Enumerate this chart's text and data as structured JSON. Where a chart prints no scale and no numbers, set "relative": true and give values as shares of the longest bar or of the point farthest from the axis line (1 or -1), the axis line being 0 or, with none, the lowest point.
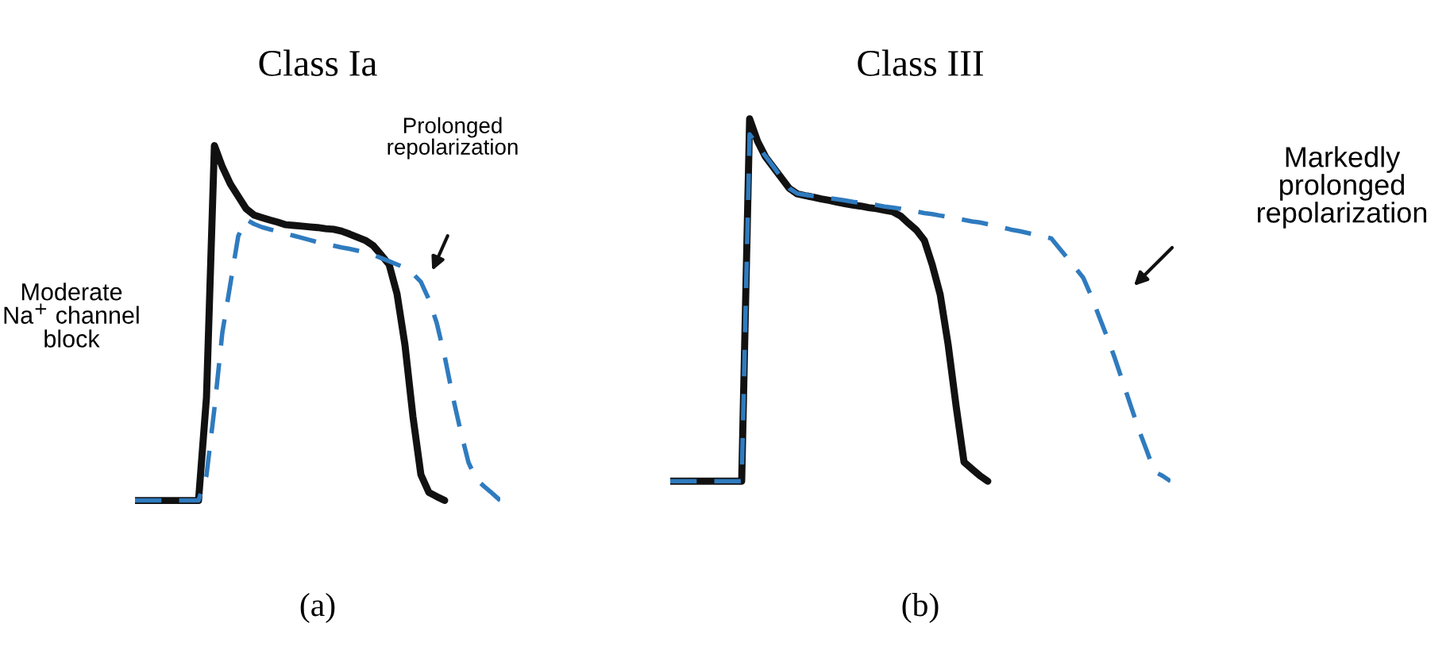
{
  "chart_data": [
    {
      "type": "line",
      "title": "Class Ia",
      "xlabel": "(a)",
      "relative": true,
      "tick_labels": false,
      "marker": "none",
      "annotations": [
        "Moderate\nNa$^{+}$ channel\nblock",
        "Prolonged\nrepolarization"
      ],
      "categories": [
        null,
        null,
        null,
        null,
        null,
        null,
        null,
        null,
        null,
        null,
        null,
        null,
        null,
        null,
        null,
        null,
        null,
        null,
        null,
        null,
        null,
        null,
        null,
        null,
        null,
        null,
        null,
        null,
        null,
        null,
        null,
        null,
        null,
        null,
        null,
        null,
        null,
        null,
        null,
        null,
        null,
        null,
        null,
        null,
        null,
        null,
        null
      ],
      "series": [
        {
          "color": "#111111",
          "line_style": "solid",
          "values": [
            0,
            0,
            0,
            0,
            0,
            0,
            0,
            0,
            0,
            0.29,
            1.0,
            0.94,
            0.892,
            0.857,
            0.822,
            0.804,
            0.797,
            0.79,
            0.784,
            0.777,
            0.775,
            0.773,
            0.771,
            0.769,
            0.766,
            0.764,
            0.759,
            0.751,
            0.742,
            0.733,
            0.718,
            0.692,
            0.665,
            0.582,
            0.438,
            0.237,
            0.073,
            0.023,
            0.011,
            0,
            null,
            null,
            null,
            null,
            null,
            null,
            null
          ]
        },
        {
          "color": "#2f7bbf",
          "line_style": "dashed",
          "values": [
            0,
            0,
            0,
            0,
            0,
            0,
            0,
            0,
            0,
            0.07,
            0.259,
            0.473,
            0.609,
            0.745,
            0.792,
            0.779,
            0.77,
            0.764,
            0.758,
            0.752,
            0.746,
            0.74,
            0.734,
            0.728,
            0.723,
            0.718,
            0.713,
            0.709,
            0.704,
            0.699,
            0.692,
            0.683,
            0.674,
            0.665,
            0.656,
            0.639,
            0.616,
            0.567,
            0.5,
            0.406,
            0.295,
            0.196,
            0.107,
            0.059,
            0.039,
            0.02,
            0
          ]
        }
      ]
    },
    {
      "type": "line",
      "title": "Class III",
      "xlabel": "(b)",
      "relative": true,
      "tick_labels": false,
      "marker": "none",
      "annotations": [
        "Markedly\nprolonged\nrepolarization"
      ],
      "categories": [
        null,
        null,
        null,
        null,
        null,
        null,
        null,
        null,
        null,
        null,
        null,
        null,
        null,
        null,
        null,
        null,
        null,
        null,
        null,
        null,
        null,
        null,
        null,
        null,
        null,
        null,
        null,
        null,
        null,
        null,
        null,
        null,
        null,
        null,
        null,
        null,
        null,
        null,
        null,
        null,
        null,
        null,
        null,
        null,
        null,
        null,
        null,
        null,
        null,
        null,
        null,
        null,
        null,
        null,
        null,
        null,
        null,
        null,
        null,
        null,
        null,
        null,
        null,
        null
      ],
      "series": [
        {
          "color": "#111111",
          "line_style": "solid",
          "values": [
            0,
            0,
            0,
            0,
            0,
            0,
            0,
            0,
            0,
            0,
            1.0,
            0.938,
            0.895,
            0.866,
            0.837,
            0.808,
            0.793,
            0.788,
            0.784,
            0.779,
            0.775,
            0.77,
            0.766,
            0.762,
            0.759,
            0.755,
            0.752,
            0.748,
            0.744,
            0.732,
            0.712,
            0.693,
            0.665,
            0.597,
            0.515,
            0.377,
            0.208,
            0.053,
            0.034,
            0.015,
            0,
            null,
            null,
            null,
            null,
            null,
            null,
            null,
            null,
            null,
            null,
            null,
            null,
            null,
            null,
            null,
            null,
            null,
            null,
            null,
            null,
            null,
            null,
            null
          ]
        },
        {
          "color": "#2f7bbf",
          "line_style": "dashed",
          "values": [
            0,
            0,
            0,
            0,
            0,
            0,
            0,
            0,
            0,
            0,
            0.957,
            0.927,
            0.897,
            0.868,
            0.838,
            0.808,
            0.794,
            0.79,
            0.787,
            0.784,
            0.781,
            0.778,
            0.775,
            0.771,
            0.768,
            0.765,
            0.762,
            0.758,
            0.755,
            0.752,
            0.748,
            0.744,
            0.74,
            0.737,
            0.733,
            0.729,
            0.725,
            0.721,
            0.717,
            0.714,
            0.709,
            0.704,
            0.699,
            0.694,
            0.69,
            0.685,
            0.68,
            0.675,
            0.67,
            0.643,
            0.616,
            0.589,
            0.562,
            0.512,
            0.455,
            0.399,
            0.339,
            0.274,
            0.208,
            0.143,
            0.085,
            0.026,
            0.015,
            0
          ]
        }
      ]
    }
  ]
}
